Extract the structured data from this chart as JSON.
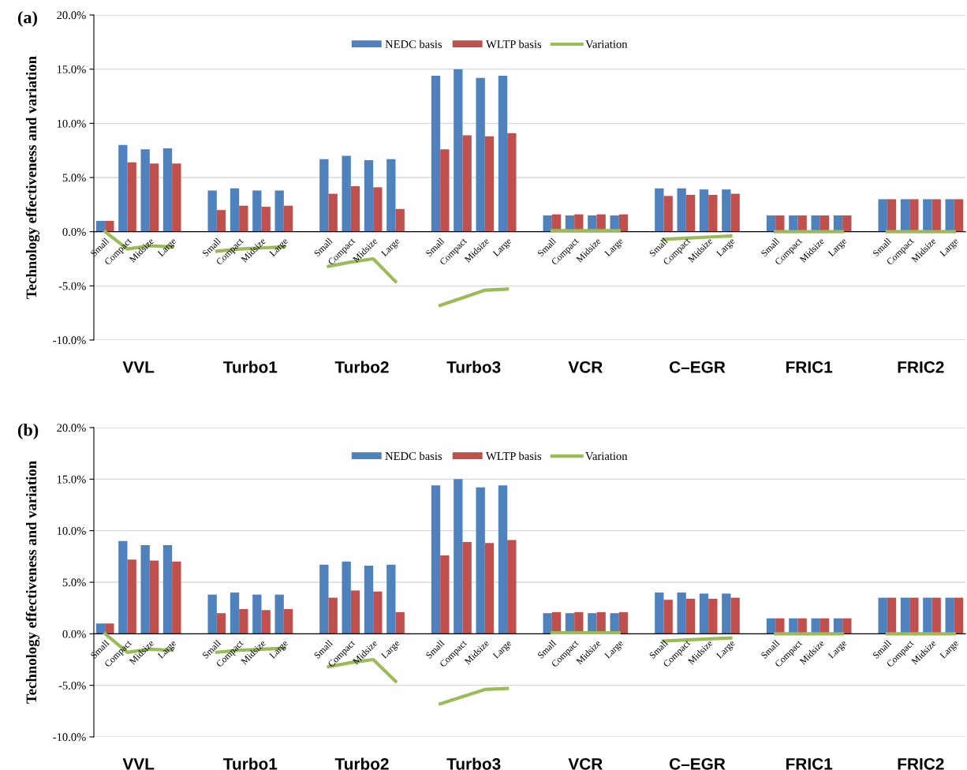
{
  "chart_data": [
    {
      "type": "bar",
      "title": "(a)",
      "ylabel": "Technology effectiveness and variation",
      "categories": [
        "Small",
        "Compact",
        "Midsize",
        "Large",
        null,
        "Small",
        "Compact",
        "Midsize",
        "Large",
        null,
        "Small",
        "Compact",
        "Midsize",
        "Large",
        null,
        "Small",
        "Compact",
        "Midsize",
        "Large",
        null,
        "Small",
        "Compact",
        "Midsize",
        "Large",
        null,
        "Small",
        "Compact",
        "Midsize",
        "Large",
        null,
        "Small",
        "Compact",
        "Midsize",
        "Large",
        null,
        "Small",
        "Compact",
        "Midsize",
        "Large"
      ],
      "series": [
        {
          "name": "NEDC basis",
          "color": "#4f81bd",
          "values": [
            1.0,
            8.0,
            7.6,
            7.7,
            null,
            3.8,
            4.0,
            3.8,
            3.8,
            null,
            6.7,
            7.0,
            6.6,
            6.7,
            null,
            14.4,
            15.0,
            14.2,
            14.4,
            null,
            1.5,
            1.5,
            1.5,
            1.5,
            null,
            4.0,
            4.0,
            3.9,
            3.9,
            null,
            1.5,
            1.5,
            1.5,
            1.5,
            null,
            3.0,
            3.0,
            3.0,
            3.0
          ]
        },
        {
          "name": "WLTP basis",
          "color": "#c0504d",
          "values": [
            1.0,
            6.4,
            6.3,
            6.3,
            null,
            2.0,
            2.4,
            2.3,
            2.4,
            null,
            3.5,
            4.2,
            4.1,
            2.1,
            null,
            7.6,
            8.9,
            8.8,
            9.1,
            null,
            1.6,
            1.6,
            1.6,
            1.6,
            null,
            3.3,
            3.4,
            3.4,
            3.5,
            null,
            1.5,
            1.5,
            1.5,
            1.5,
            null,
            3.0,
            3.0,
            3.0,
            3.0
          ]
        },
        {
          "name": "Variation",
          "type": "line",
          "color": "#9bbb59",
          "values": [
            0.0,
            -1.6,
            -1.3,
            -1.4,
            null,
            -1.8,
            -1.6,
            -1.5,
            -1.4,
            null,
            -3.2,
            -2.8,
            -2.5,
            -4.6,
            null,
            -6.8,
            -6.1,
            -5.4,
            -5.3,
            null,
            0.1,
            0.1,
            0.1,
            0.1,
            null,
            -0.7,
            -0.6,
            -0.5,
            -0.4,
            null,
            0.0,
            0.0,
            0.0,
            0.0,
            null,
            0.0,
            0.0,
            0.0,
            0.0
          ]
        }
      ],
      "ylim": [
        -10,
        20
      ],
      "yticks": [
        {
          "value": -10,
          "label": "-10.0%"
        },
        {
          "value": -5,
          "label": "-5.0%"
        },
        {
          "value": 0,
          "label": "0.0%"
        },
        {
          "value": 5,
          "label": "5.0%"
        },
        {
          "value": 10,
          "label": "10.0%"
        },
        {
          "value": 15,
          "label": "15.0%"
        },
        {
          "value": 20,
          "label": "20.0%"
        }
      ],
      "annotations": [
        "VVL",
        "Turbo1",
        "Turbo2",
        "Turbo3",
        "VCR",
        "C–EGR",
        "FRIC1",
        "FRIC2"
      ],
      "grid": "y",
      "legend": "top"
    },
    {
      "type": "bar",
      "title": "(b)",
      "ylabel": "Technology effectiveness and variation",
      "categories": [
        "Small",
        "Compact",
        "Midsize",
        "Large",
        null,
        "Small",
        "Compact",
        "Midsize",
        "Large",
        null,
        "Small",
        "Compact",
        "Midsize",
        "Large",
        null,
        "Small",
        "Compact",
        "Midsize",
        "Large",
        null,
        "Small",
        "Compact",
        "Midsize",
        "Large",
        null,
        "Small",
        "Compact",
        "Midsize",
        "Large",
        null,
        "Small",
        "Compact",
        "Midsize",
        "Large",
        null,
        "Small",
        "Compact",
        "Midsize",
        "Large"
      ],
      "series": [
        {
          "name": "NEDC basis",
          "color": "#4f81bd",
          "values": [
            1.0,
            9.0,
            8.6,
            8.6,
            null,
            3.8,
            4.0,
            3.8,
            3.8,
            null,
            6.7,
            7.0,
            6.6,
            6.7,
            null,
            14.4,
            15.0,
            14.2,
            14.4,
            null,
            2.0,
            2.0,
            2.0,
            2.0,
            null,
            4.0,
            4.0,
            3.9,
            3.9,
            null,
            1.5,
            1.5,
            1.5,
            1.5,
            null,
            3.5,
            3.5,
            3.5,
            3.5
          ]
        },
        {
          "name": "WLTP basis",
          "color": "#c0504d",
          "values": [
            1.0,
            7.2,
            7.1,
            7.0,
            null,
            2.0,
            2.4,
            2.3,
            2.4,
            null,
            3.5,
            4.2,
            4.1,
            2.1,
            null,
            7.6,
            8.9,
            8.8,
            9.1,
            null,
            2.1,
            2.1,
            2.1,
            2.1,
            null,
            3.3,
            3.4,
            3.4,
            3.5,
            null,
            1.5,
            1.5,
            1.5,
            1.5,
            null,
            3.5,
            3.5,
            3.5,
            3.5
          ]
        },
        {
          "name": "Variation",
          "type": "line",
          "color": "#9bbb59",
          "values": [
            0.0,
            -1.8,
            -1.5,
            -1.6,
            null,
            -1.8,
            -1.6,
            -1.5,
            -1.4,
            null,
            -3.2,
            -2.8,
            -2.5,
            -4.6,
            null,
            -6.8,
            -6.1,
            -5.4,
            -5.3,
            null,
            0.1,
            0.1,
            0.1,
            0.1,
            null,
            -0.7,
            -0.6,
            -0.5,
            -0.4,
            null,
            0.0,
            0.0,
            0.0,
            0.0,
            null,
            0.0,
            0.0,
            0.0,
            0.0
          ]
        }
      ],
      "ylim": [
        -10,
        20
      ],
      "yticks": [
        {
          "value": -10,
          "label": "-10.0%"
        },
        {
          "value": -5,
          "label": "-5.0%"
        },
        {
          "value": 0,
          "label": "0.0%"
        },
        {
          "value": 5,
          "label": "5.0%"
        },
        {
          "value": 10,
          "label": "10.0%"
        },
        {
          "value": 15,
          "label": "15.0%"
        },
        {
          "value": 20,
          "label": "20.0%"
        }
      ],
      "annotations": [
        "VVL",
        "Turbo1",
        "Turbo2",
        "Turbo3",
        "VCR",
        "C–EGR",
        "FRIC1",
        "FRIC2"
      ],
      "grid": "y",
      "legend": "top"
    }
  ]
}
